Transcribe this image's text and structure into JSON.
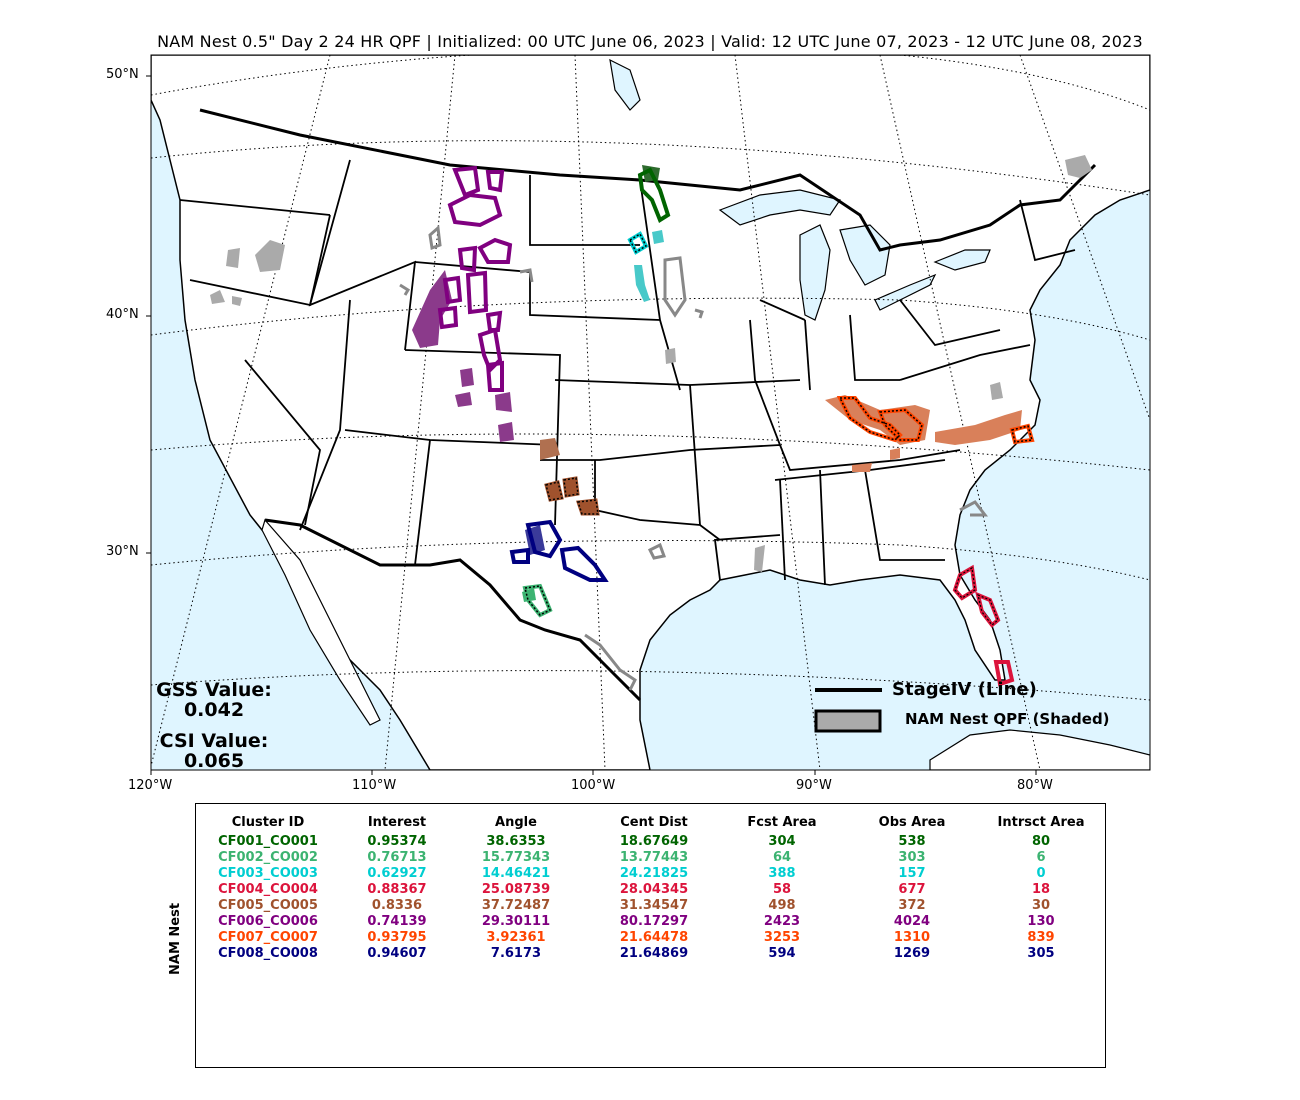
{
  "title": "NAM Nest 0.5\" Day 2 24 HR QPF | Initialized: 00 UTC June 06, 2023 | Valid: 12 UTC June 07, 2023 - 12 UTC June 08, 2023",
  "lat_labels": [
    "50°N",
    "40°N",
    "30°N"
  ],
  "lon_labels": [
    "120°W",
    "110°W",
    "100°W",
    "90°W",
    "80°W"
  ],
  "stats": {
    "gss_label": "GSS Value:",
    "gss_value": "0.042",
    "csi_label": "CSI Value:",
    "csi_value": "0.065"
  },
  "legend": {
    "line_label": "StageIV (Line)",
    "shaded_label": "NAM Nest QPF (Shaded)"
  },
  "table": {
    "row_title": "NAM Nest",
    "headers": [
      "Cluster ID",
      "Interest",
      "Angle",
      "Cent Dist",
      "Fcst Area",
      "Obs Area",
      "Intrsct Area"
    ],
    "rows": [
      {
        "color": "#006400",
        "cells": [
          "CF001_CO001",
          "0.95374",
          "38.6353",
          "18.67649",
          "304",
          "538",
          "80"
        ]
      },
      {
        "color": "#3cb371",
        "cells": [
          "CF002_CO002",
          "0.76713",
          "15.77343",
          "13.77443",
          "64",
          "303",
          "6"
        ]
      },
      {
        "color": "#00ced1",
        "cells": [
          "CF003_CO003",
          "0.62927",
          "14.46421",
          "24.21825",
          "388",
          "157",
          "0"
        ]
      },
      {
        "color": "#dc143c",
        "cells": [
          "CF004_CO004",
          "0.88367",
          "25.08739",
          "28.04345",
          "58",
          "677",
          "18"
        ]
      },
      {
        "color": "#a0522d",
        "cells": [
          "CF005_CO005",
          "0.8336",
          "37.72487",
          "31.34547",
          "498",
          "372",
          "30"
        ]
      },
      {
        "color": "#800080",
        "cells": [
          "CF006_CO006",
          "0.74139",
          "29.30111",
          "80.17297",
          "2423",
          "4024",
          "130"
        ]
      },
      {
        "color": "#ff4500",
        "cells": [
          "CF007_CO007",
          "0.93795",
          "3.92361",
          "21.64478",
          "3253",
          "1310",
          "839"
        ]
      },
      {
        "color": "#000080",
        "cells": [
          "CF008_CO008",
          "0.94607",
          "7.6173",
          "21.64869",
          "594",
          "1269",
          "305"
        ]
      }
    ]
  },
  "colors": {
    "ocean": "#dff5ff",
    "land": "#ffffff",
    "gray_qpf": "#aaaaaa",
    "gray_obs": "#888888"
  }
}
